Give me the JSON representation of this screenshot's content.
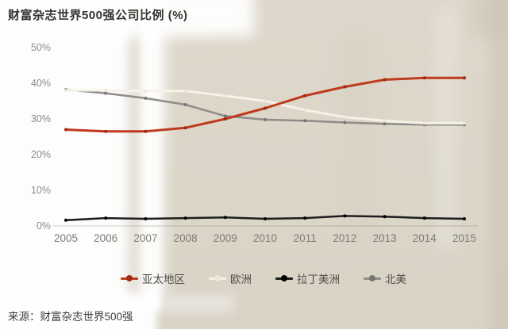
{
  "title": "财富杂志世界500强公司比例 (%)",
  "source_note": "来源：财富杂志世界500强",
  "colors": {
    "canvas_beige": "#ddd7ca",
    "paint_white": "#ffffff",
    "axis_text_gray": "#8b8b88",
    "legend_text": "#4d4b47"
  },
  "chart_data": {
    "type": "line",
    "title": "财富杂志世界500强公司比例 (%)",
    "categories": [
      "2005",
      "2006",
      "2007",
      "2008",
      "2009",
      "2010",
      "2011",
      "2012",
      "2013",
      "2014",
      "2015"
    ],
    "series": [
      {
        "name": "亚太地区",
        "color": "#bf3a1e",
        "marker_color": "#9c2c12",
        "values": [
          27,
          26.5,
          26.5,
          27.5,
          30,
          33,
          36.5,
          39,
          41,
          41.5,
          41.5
        ]
      },
      {
        "name": "欧洲",
        "color": "#f6f2e8",
        "marker_color": "#efe8da",
        "values": [
          38,
          38,
          37.8,
          37.8,
          36.5,
          35,
          32.5,
          30.5,
          29.5,
          28.8,
          28.8
        ]
      },
      {
        "name": "拉丁美洲",
        "color": "#1d1d1d",
        "marker_color": "#000000",
        "values": [
          1.6,
          2.2,
          2,
          2.2,
          2.4,
          2,
          2.2,
          2.8,
          2.6,
          2.2,
          2
        ]
      },
      {
        "name": "北美",
        "color": "#8f8d8a",
        "marker_color": "#787673",
        "values": [
          38.2,
          37.2,
          35.8,
          34,
          30.8,
          29.8,
          29.5,
          29,
          28.6,
          28.4,
          28.4
        ]
      }
    ],
    "ylim": [
      0,
      50
    ],
    "yticks": [
      {
        "label": "0%",
        "value": 0
      },
      {
        "label": "10%",
        "value": 10
      },
      {
        "label": "20%",
        "value": 20
      },
      {
        "label": "30%",
        "value": 30
      },
      {
        "label": "40%",
        "value": 40
      },
      {
        "label": "50%",
        "value": 50
      }
    ],
    "grid": false,
    "legend_position": "bottom"
  }
}
